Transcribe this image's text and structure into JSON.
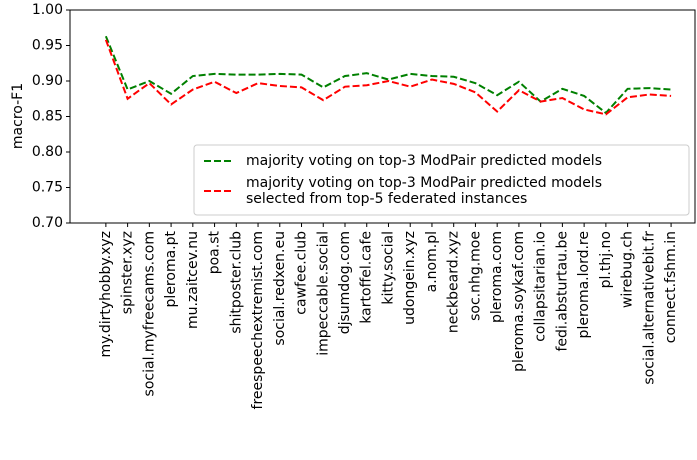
{
  "chart_data": {
    "type": "line",
    "ylabel": "macro-F1",
    "categories": [
      "my.dirtyhobby.xyz",
      "spinster.xyz",
      "social.myfreecams.com",
      "pleroma.pt",
      "mu.zaitcev.nu",
      "poa.st",
      "shitposter.club",
      "freespeechextremist.com",
      "social.redxen.eu",
      "cawfee.club",
      "impeccable.social",
      "djsumdog.com",
      "kartoffel.cafe",
      "kitty.social",
      "udongein.xyz",
      "a.nom.pl",
      "neckbeard.xyz",
      "soc.nhg.moe",
      "pleroma.com",
      "pleroma.soykaf.com",
      "collapsitarian.io",
      "fedi.absturtau.be",
      "pleroma.lord.re",
      "pl.thj.no",
      "wirebug.ch",
      "social.alternativebit.fr",
      "connect.fshm.in"
    ],
    "series": [
      {
        "name": "majority voting on top-3 ModPair predicted models",
        "color": "#008000",
        "values": [
          0.963,
          0.888,
          0.9,
          0.882,
          0.907,
          0.91,
          0.909,
          0.909,
          0.91,
          0.909,
          0.891,
          0.907,
          0.911,
          0.902,
          0.91,
          0.907,
          0.906,
          0.897,
          0.88,
          0.899,
          0.871,
          0.889,
          0.879,
          0.855,
          0.889,
          0.89,
          0.888
        ]
      },
      {
        "name": "majority voting on top-3 ModPair predicted models\nselected from top-5 federated instances",
        "color": "#ff0000",
        "values": [
          0.958,
          0.875,
          0.897,
          0.867,
          0.888,
          0.899,
          0.883,
          0.897,
          0.893,
          0.891,
          0.873,
          0.892,
          0.894,
          0.9,
          0.892,
          0.902,
          0.896,
          0.884,
          0.857,
          0.887,
          0.871,
          0.876,
          0.86,
          0.853,
          0.877,
          0.881,
          0.879
        ]
      }
    ],
    "ylim": [
      0.7,
      1.0
    ],
    "yticks": [
      {
        "value": 0.7,
        "label": "0.70"
      },
      {
        "value": 0.75,
        "label": "0.75"
      },
      {
        "value": 0.8,
        "label": "0.80"
      },
      {
        "value": 0.85,
        "label": "0.85"
      },
      {
        "value": 0.9,
        "label": "0.90"
      },
      {
        "value": 0.95,
        "label": "0.95"
      },
      {
        "value": 1.0,
        "label": "1.00"
      }
    ],
    "legend_position": "lower right"
  }
}
